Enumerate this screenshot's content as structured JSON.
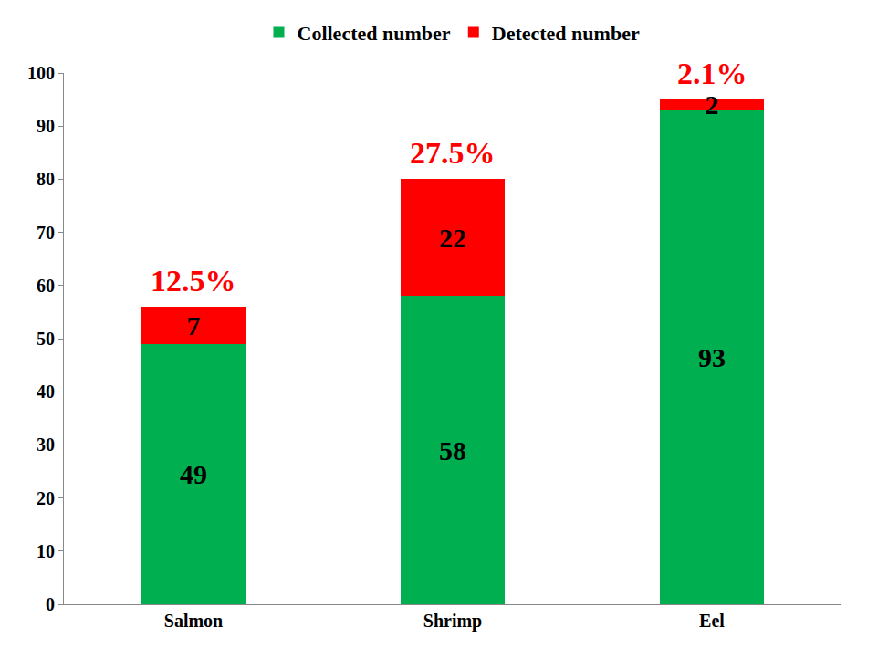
{
  "chart_data": {
    "type": "bar",
    "stacked": true,
    "data_labels": true,
    "categories": [
      "Salmon",
      "Shrimp",
      "Eel"
    ],
    "series": [
      {
        "name": "Collected number",
        "color": "#00b050",
        "values": [
          49,
          58,
          93
        ]
      },
      {
        "name": "Detected number",
        "color": "#ff0000",
        "values": [
          7,
          22,
          2
        ]
      }
    ],
    "annotations": [
      {
        "category": "Salmon",
        "text": "12.5%"
      },
      {
        "category": "Shrimp",
        "text": "27.5%"
      },
      {
        "category": "Eel",
        "text": "2.1%"
      }
    ],
    "ylim": [
      0,
      100
    ],
    "yticks": [
      0,
      10,
      20,
      30,
      40,
      50,
      60,
      70,
      80,
      90,
      100
    ],
    "grid": false,
    "legend": "top"
  }
}
